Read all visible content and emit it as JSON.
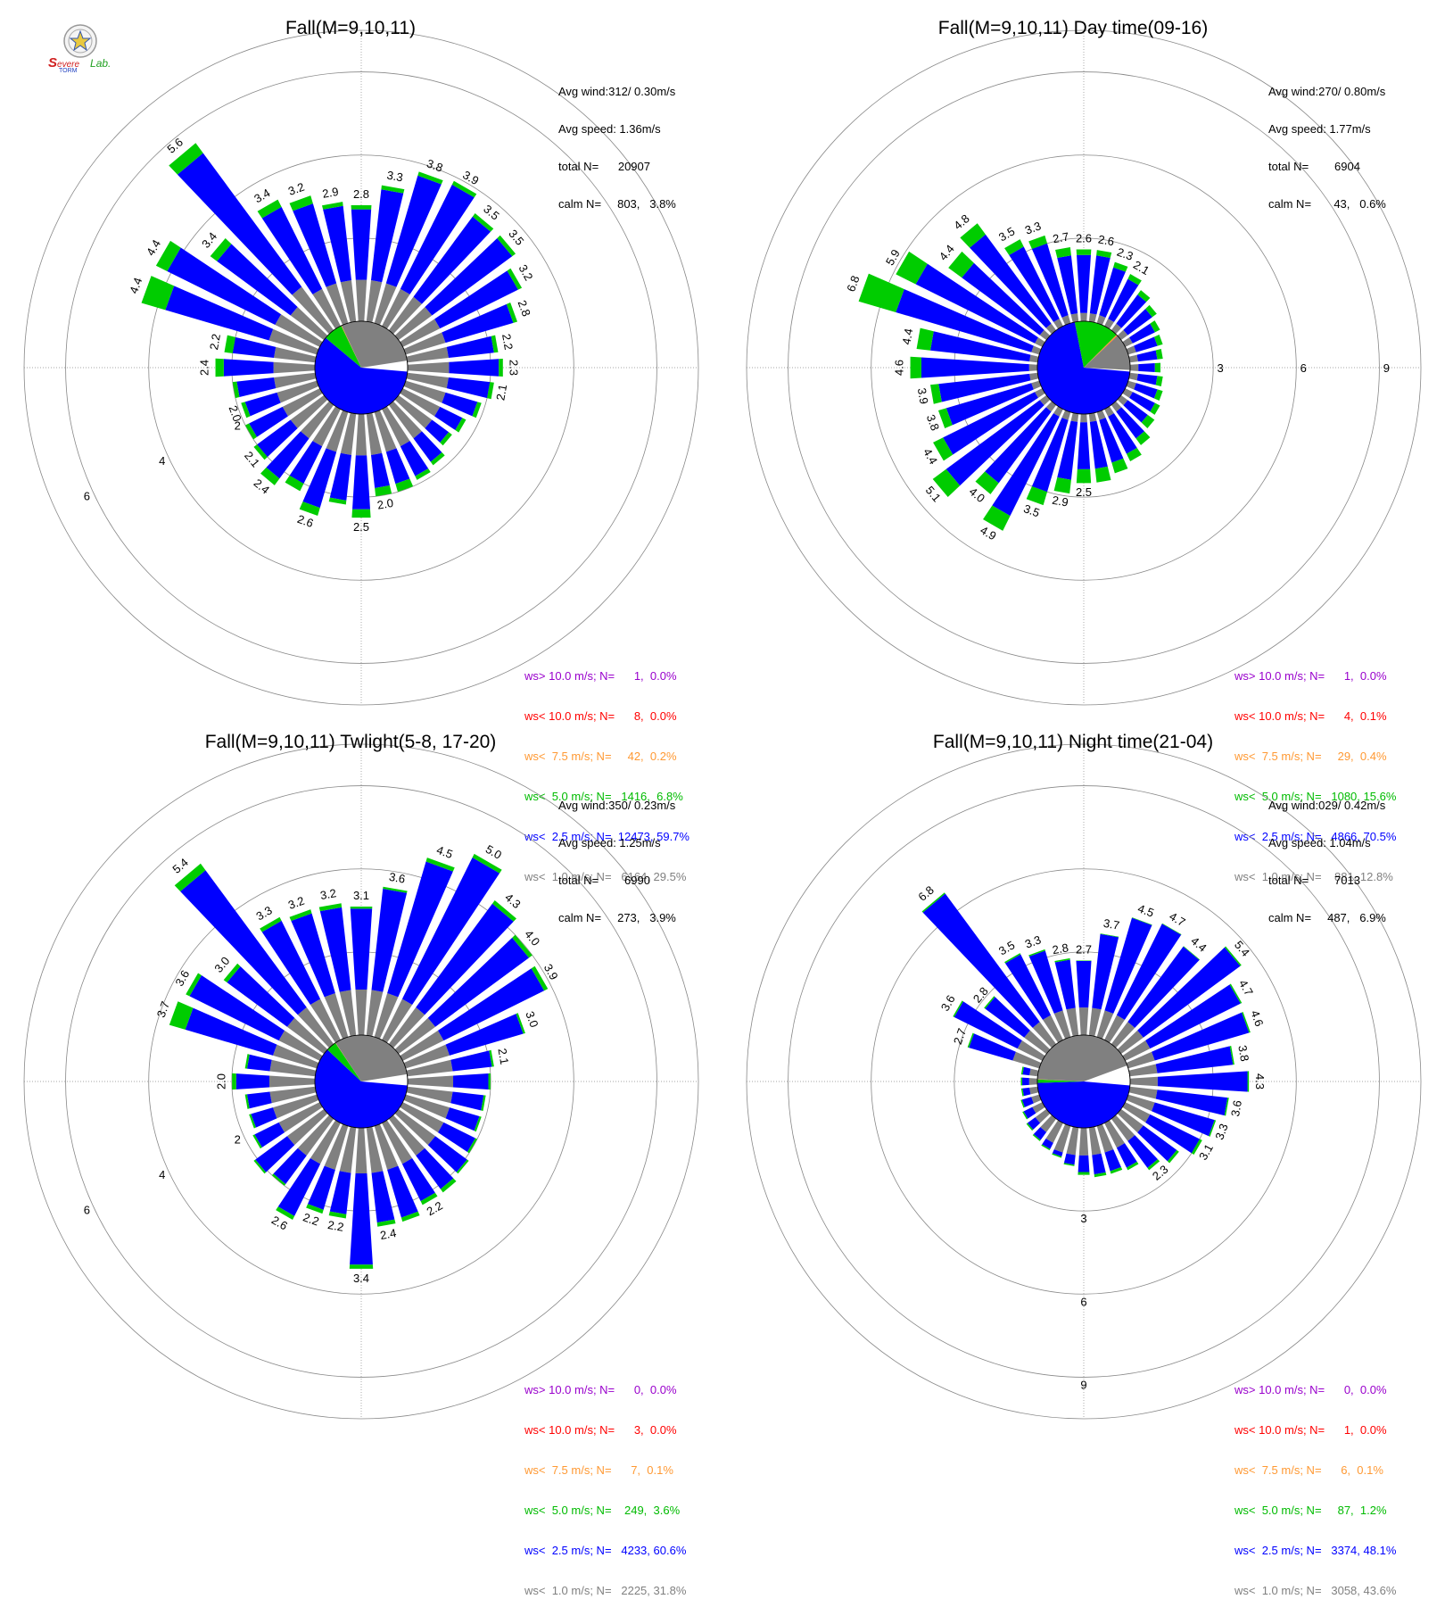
{
  "logo": {
    "text_s1": "S",
    "text_evere": "evere",
    "text_torm": "TORM",
    "text_lab": "Lab."
  },
  "colors": {
    "calm": "#808080",
    "lt2_5": "#0000ff",
    "lt5": "#00cc00",
    "lt7_5": "#ff9933",
    "lt10": "#ff0000",
    "gt10": "#9900cc",
    "grid": "#888888",
    "bg": "#ffffff"
  },
  "chart_data": [
    {
      "type": "wind-rose",
      "title": "Fall(M=9,10,11)",
      "stats": [
        "Avg wind:312/ 0.30m/s",
        "Avg speed: 1.36m/s",
        "total N=      20907",
        "calm N=     803,   3.8%"
      ],
      "legend": [
        "ws> 10.0 m/s; N=      1,  0.0%",
        "ws< 10.0 m/s; N=      8,  0.0%",
        "ws<  7.5 m/s; N=     42,  0.2%",
        "ws<  5.0 m/s; N=   1416,  6.8%",
        "ws<  2.5 m/s; N=  12473, 59.7%",
        "ws<  1.0 m/s; N=   6164, 29.5%"
      ],
      "ring_labels": [
        "2",
        "4",
        "6"
      ],
      "ring_label_angle": 245,
      "rmax": 7,
      "center_pie": {
        "calm": 29.5,
        "lt2_5": 59.7,
        "lt5": 6.8,
        "lt7_5": 0.2,
        "lt10": 0.0,
        "gt10": 0.0
      },
      "directions": [
        0,
        10,
        20,
        30,
        40,
        50,
        60,
        70,
        80,
        90,
        100,
        110,
        120,
        130,
        140,
        150,
        160,
        170,
        180,
        190,
        200,
        210,
        220,
        230,
        240,
        250,
        260,
        270,
        280,
        290,
        300,
        310,
        320,
        330,
        340,
        350
      ],
      "totals": [
        2.8,
        3.3,
        3.8,
        3.9,
        3.5,
        3.5,
        3.2,
        2.8,
        2.2,
        2.3,
        2.1,
        1.9,
        1.7,
        1.6,
        1.8,
        1.9,
        2.0,
        2.0,
        2.5,
        2.2,
        2.6,
        2.2,
        2.4,
        2.1,
        2.0,
        1.9,
        2.0,
        2.4,
        2.2,
        4.4,
        4.4,
        3.4,
        5.6,
        3.4,
        3.2,
        2.9
      ],
      "labeled_totals": [
        2.8,
        3.3,
        3.8,
        3.9,
        3.5,
        3.5,
        3.2,
        2.8,
        2.2,
        2.3,
        2.1,
        null,
        null,
        null,
        null,
        null,
        null,
        2.0,
        2.5,
        null,
        2.6,
        null,
        2.4,
        2.1,
        null,
        2.0,
        null,
        2.4,
        2.2,
        4.4,
        4.4,
        3.4,
        5.6,
        3.4,
        3.2,
        2.9
      ],
      "calm_part": [
        1.0,
        1.0,
        1.0,
        1.0,
        1.0,
        1.0,
        1.0,
        1.0,
        1.0,
        1.0,
        1.0,
        1.0,
        1.0,
        1.0,
        1.0,
        1.0,
        1.0,
        1.0,
        1.0,
        1.0,
        1.0,
        1.0,
        1.0,
        1.0,
        1.0,
        1.0,
        1.0,
        1.0,
        1.0,
        1.2,
        1.2,
        1.0,
        1.3,
        1.0,
        1.0,
        1.0
      ],
      "green_part": [
        0.1,
        0.1,
        0.1,
        0.1,
        0.1,
        0.1,
        0.1,
        0.1,
        0.1,
        0.1,
        0.1,
        0.1,
        0.1,
        0.1,
        0.1,
        0.1,
        0.2,
        0.2,
        0.2,
        0.1,
        0.2,
        0.2,
        0.2,
        0.1,
        0.1,
        0.1,
        0.1,
        0.2,
        0.2,
        0.6,
        0.3,
        0.2,
        0.3,
        0.2,
        0.2,
        0.1
      ]
    },
    {
      "type": "wind-rose",
      "title": "Fall(M=9,10,11) Day time(09-16)",
      "stats": [
        "Avg wind:270/ 0.80m/s",
        "Avg speed: 1.77m/s",
        "total N=        6904",
        "calm N=       43,   0.6%"
      ],
      "legend": [
        "ws> 10.0 m/s; N=      1,  0.0%",
        "ws< 10.0 m/s; N=      4,  0.1%",
        "ws<  7.5 m/s; N=     29,  0.4%",
        "ws<  5.0 m/s; N=   1080, 15.6%",
        "ws<  2.5 m/s; N=   4866, 70.5%",
        "ws<  1.0 m/s; N=    881, 12.8%"
      ],
      "ring_labels": [
        "3",
        "6",
        "9"
      ],
      "ring_label_angle": 90,
      "rmax": 10.5,
      "center_pie": {
        "calm": 12.8,
        "lt2_5": 70.5,
        "lt5": 15.6,
        "lt7_5": 0.4,
        "lt10": 0.1,
        "gt10": 0.0
      },
      "directions": [
        0,
        10,
        20,
        30,
        40,
        50,
        60,
        70,
        80,
        90,
        100,
        110,
        120,
        130,
        140,
        150,
        160,
        170,
        180,
        190,
        200,
        210,
        220,
        230,
        240,
        250,
        260,
        270,
        280,
        290,
        300,
        310,
        320,
        330,
        340,
        350
      ],
      "totals": [
        2.6,
        2.6,
        2.3,
        2.1,
        1.8,
        1.6,
        1.4,
        1.3,
        1.2,
        1.1,
        1.2,
        1.3,
        1.4,
        1.5,
        1.8,
        2.1,
        2.3,
        2.5,
        2.5,
        2.9,
        3.5,
        4.9,
        4.0,
        5.1,
        4.4,
        3.8,
        3.9,
        4.6,
        4.4,
        6.8,
        5.9,
        4.4,
        4.8,
        3.5,
        3.3,
        2.7
      ],
      "labeled_totals": [
        2.6,
        2.6,
        2.3,
        2.1,
        null,
        null,
        null,
        null,
        null,
        null,
        null,
        null,
        null,
        null,
        null,
        null,
        null,
        null,
        2.5,
        2.9,
        3.5,
        4.9,
        4.0,
        5.1,
        4.4,
        3.8,
        3.9,
        4.6,
        4.4,
        6.8,
        5.9,
        4.4,
        4.8,
        3.5,
        3.3,
        2.7
      ],
      "calm_part": [
        0.3,
        0.3,
        0.3,
        0.3,
        0.3,
        0.3,
        0.3,
        0.3,
        0.3,
        0.3,
        0.3,
        0.3,
        0.3,
        0.3,
        0.3,
        0.3,
        0.3,
        0.3,
        0.3,
        0.3,
        0.3,
        0.3,
        0.3,
        0.3,
        0.3,
        0.3,
        0.3,
        0.3,
        0.3,
        0.3,
        0.3,
        0.3,
        0.3,
        0.3,
        0.3,
        0.3
      ],
      "green_part": [
        0.2,
        0.2,
        0.2,
        0.2,
        0.2,
        0.2,
        0.2,
        0.2,
        0.2,
        0.2,
        0.2,
        0.2,
        0.2,
        0.3,
        0.3,
        0.3,
        0.4,
        0.5,
        0.5,
        0.5,
        0.5,
        0.6,
        0.5,
        0.6,
        0.4,
        0.3,
        0.3,
        0.4,
        0.5,
        1.4,
        0.8,
        0.6,
        0.5,
        0.3,
        0.3,
        0.3
      ]
    },
    {
      "type": "wind-rose",
      "title": "Fall(M=9,10,11) Twlight(5-8, 17-20)",
      "stats": [
        "Avg wind:350/ 0.23m/s",
        "Avg speed: 1.25m/s",
        "total N=        6990",
        "calm N=     273,   3.9%"
      ],
      "legend": [
        "ws> 10.0 m/s; N=      0,  0.0%",
        "ws< 10.0 m/s; N=      3,  0.0%",
        "ws<  7.5 m/s; N=      7,  0.1%",
        "ws<  5.0 m/s; N=    249,  3.6%",
        "ws<  2.5 m/s; N=   4233, 60.6%",
        "ws<  1.0 m/s; N=   2225, 31.8%"
      ],
      "ring_labels": [
        "2",
        "4",
        "6"
      ],
      "ring_label_angle": 245,
      "rmax": 7,
      "center_pie": {
        "calm": 31.8,
        "lt2_5": 60.6,
        "lt5": 3.6,
        "lt7_5": 0.1,
        "lt10": 0.0,
        "gt10": 0.0
      },
      "directions": [
        0,
        10,
        20,
        30,
        40,
        50,
        60,
        70,
        80,
        90,
        100,
        110,
        120,
        130,
        140,
        150,
        160,
        170,
        180,
        190,
        200,
        210,
        220,
        230,
        240,
        250,
        260,
        270,
        280,
        290,
        300,
        310,
        320,
        330,
        340,
        350
      ],
      "totals": [
        3.1,
        3.6,
        4.5,
        5.0,
        4.3,
        4.0,
        3.9,
        3.0,
        2.1,
        2.0,
        1.9,
        1.9,
        2.0,
        2.1,
        2.2,
        2.2,
        2.4,
        2.4,
        3.4,
        2.2,
        2.2,
        2.6,
        2.0,
        2.1,
        1.8,
        1.7,
        1.7,
        2.0,
        1.7,
        3.7,
        3.6,
        3.0,
        5.4,
        3.3,
        3.2,
        3.2
      ],
      "labeled_totals": [
        3.1,
        3.6,
        4.5,
        5.0,
        4.3,
        4.0,
        3.9,
        3.0,
        2.1,
        null,
        null,
        null,
        null,
        null,
        null,
        2.2,
        null,
        2.4,
        3.4,
        2.2,
        2.2,
        2.6,
        null,
        null,
        null,
        null,
        null,
        2.0,
        null,
        3.7,
        3.6,
        3.0,
        5.4,
        3.3,
        3.2,
        3.2
      ],
      "calm_part": [
        1.1,
        1.1,
        1.1,
        1.1,
        1.1,
        1.1,
        1.1,
        1.1,
        1.1,
        1.1,
        1.1,
        1.1,
        1.1,
        1.1,
        1.1,
        1.1,
        1.1,
        1.1,
        1.1,
        1.1,
        1.1,
        1.1,
        1.1,
        1.1,
        1.1,
        1.1,
        1.1,
        1.1,
        1.1,
        1.1,
        1.1,
        1.1,
        1.1,
        1.1,
        1.1,
        1.1
      ],
      "green_part": [
        0.05,
        0.05,
        0.1,
        0.1,
        0.1,
        0.1,
        0.1,
        0.05,
        0.05,
        0.05,
        0.05,
        0.05,
        0.05,
        0.05,
        0.1,
        0.1,
        0.1,
        0.1,
        0.1,
        0.1,
        0.1,
        0.1,
        0.05,
        0.05,
        0.05,
        0.05,
        0.05,
        0.1,
        0.05,
        0.4,
        0.1,
        0.1,
        0.2,
        0.1,
        0.1,
        0.1
      ]
    },
    {
      "type": "wind-rose",
      "title": "Fall(M=9,10,11) Night time(21-04)",
      "stats": [
        "Avg wind:029/ 0.42m/s",
        "Avg speed: 1.04m/s",
        "total N=        7013",
        "calm N=     487,   6.9%"
      ],
      "legend": [
        "ws> 10.0 m/s; N=      0,  0.0%",
        "ws< 10.0 m/s; N=      1,  0.0%",
        "ws<  7.5 m/s; N=      6,  0.1%",
        "ws<  5.0 m/s; N=     87,  1.2%",
        "ws<  2.5 m/s; N=   3374, 48.1%",
        "ws<  1.0 m/s; N=   3058, 43.6%"
      ],
      "ring_labels": [
        "3",
        "6",
        "9"
      ],
      "ring_label_angle": 180,
      "rmax": 10.5,
      "center_pie": {
        "calm": 43.6,
        "lt2_5": 48.1,
        "lt5": 1.2,
        "lt7_5": 0.1,
        "lt10": 0.0,
        "gt10": 0.0
      },
      "directions": [
        0,
        10,
        20,
        30,
        40,
        50,
        60,
        70,
        80,
        90,
        100,
        110,
        120,
        130,
        140,
        150,
        160,
        170,
        180,
        190,
        200,
        210,
        220,
        230,
        240,
        250,
        260,
        270,
        280,
        290,
        300,
        310,
        320,
        330,
        340,
        350
      ],
      "totals": [
        2.7,
        3.7,
        4.5,
        4.7,
        4.4,
        5.4,
        4.7,
        4.6,
        3.8,
        4.3,
        3.6,
        3.3,
        3.1,
        2.6,
        2.3,
        1.9,
        1.8,
        1.8,
        1.7,
        1.4,
        1.2,
        1.1,
        1.0,
        0.9,
        0.8,
        0.7,
        0.6,
        0.6,
        0.6,
        2.7,
        3.6,
        2.8,
        6.8,
        3.5,
        3.3,
        2.8
      ],
      "labeled_totals": [
        2.7,
        3.7,
        4.5,
        4.7,
        4.4,
        5.4,
        4.7,
        4.6,
        3.8,
        4.3,
        3.6,
        3.3,
        3.1,
        null,
        2.3,
        null,
        null,
        null,
        null,
        null,
        null,
        null,
        null,
        null,
        null,
        null,
        null,
        null,
        null,
        2.7,
        3.6,
        2.8,
        6.8,
        3.5,
        3.3,
        2.8
      ],
      "calm_part": [
        1.0,
        1.0,
        1.0,
        1.0,
        1.0,
        1.0,
        1.0,
        1.0,
        1.0,
        1.0,
        1.0,
        1.0,
        1.0,
        1.0,
        1.0,
        1.0,
        1.0,
        1.0,
        1.0,
        1.0,
        1.0,
        0.8,
        0.6,
        0.5,
        0.4,
        0.3,
        0.3,
        0.3,
        0.3,
        1.0,
        1.0,
        1.0,
        1.0,
        1.0,
        1.0,
        1.0
      ],
      "green_part": [
        0.02,
        0.02,
        0.02,
        0.02,
        0.02,
        0.05,
        0.05,
        0.05,
        0.05,
        0.05,
        0.05,
        0.05,
        0.1,
        0.1,
        0.1,
        0.1,
        0.1,
        0.1,
        0.1,
        0.05,
        0.05,
        0.05,
        0.05,
        0.05,
        0.05,
        0.05,
        0.05,
        0.05,
        0.05,
        0.05,
        0.05,
        0.05,
        0.05,
        0.05,
        0.05,
        0.05
      ]
    }
  ]
}
